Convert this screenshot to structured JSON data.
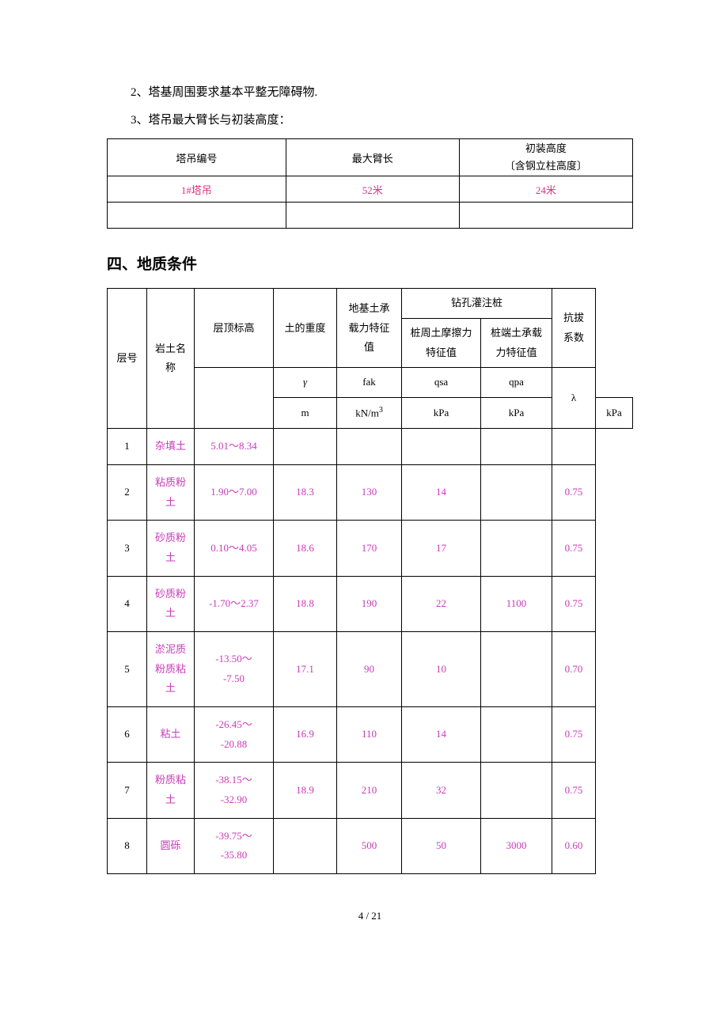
{
  "text": {
    "line2": "2、塔基周围要求基本平整无障碍物.",
    "line3": "3、塔吊最大臂长与初装高度："
  },
  "table1": {
    "headers": {
      "col1": "塔吊编号",
      "col2": "最大臂长",
      "col3_l1": "初装高度",
      "col3_l2": "〔含钢立柱高度〕"
    },
    "row1": {
      "c1": "1#塔吊",
      "c2": "52米",
      "c3": "24米"
    }
  },
  "sectionTitle": "四、地质条件",
  "geo": {
    "headers": {
      "layer": "层号",
      "soilName_l1": "岩土名",
      "soilName_l2": "称",
      "topElev": "层顶标高",
      "weight": "土的重度",
      "bearing_l1": "地基土承",
      "bearing_l2": "载力特征",
      "bearing_l3": "值",
      "pile": "钻孔灌注桩",
      "friction_l1": "桩周土摩擦力",
      "friction_l2": "特征值",
      "tip_l1": "桩端土承载",
      "tip_l2": "力特征值",
      "pullout_l1": "抗拔",
      "pullout_l2": "系数"
    },
    "symbols": {
      "weight": "γ",
      "bearing": "fak",
      "friction": "qsa",
      "tip": "qpa",
      "pullout": "λ"
    },
    "units": {
      "elev": "m",
      "weight": "kN/m",
      "weight_sup": "3",
      "bearing": "kPa",
      "friction": "kPa",
      "tip": "kPa"
    },
    "rows": [
      {
        "n": "1",
        "name": "杂填土",
        "elev": "5.01～8.34",
        "w": "",
        "fak": "",
        "qsa": "",
        "qpa": "",
        "lam": ""
      },
      {
        "n": "2",
        "name": "粘质粉土",
        "elev": "1.90～7.00",
        "w": "18.3",
        "fak": "130",
        "qsa": "14",
        "qpa": "",
        "lam": "0.75"
      },
      {
        "n": "3",
        "name": "砂质粉土",
        "elev": "0.10～4.05",
        "w": "18.6",
        "fak": "170",
        "qsa": "17",
        "qpa": "",
        "lam": "0.75"
      },
      {
        "n": "4",
        "name": "砂质粉土",
        "elev": "-1.70～2.37",
        "w": "18.8",
        "fak": "190",
        "qsa": "22",
        "qpa": "1100",
        "lam": "0.75"
      },
      {
        "n": "5",
        "name": "淤泥质粉质粘土",
        "elev": "-13.50～-7.50",
        "w": "17.1",
        "fak": "90",
        "qsa": "10",
        "qpa": "",
        "lam": "0.70"
      },
      {
        "n": "6",
        "name": "粘土",
        "elev": "-26.45～-20.88",
        "w": "16.9",
        "fak": "110",
        "qsa": "14",
        "qpa": "",
        "lam": "0.75"
      },
      {
        "n": "7",
        "name": "粉质粘土",
        "elev": "-38.15～-32.90",
        "w": "18.9",
        "fak": "210",
        "qsa": "32",
        "qpa": "",
        "lam": "0.75"
      },
      {
        "n": "8",
        "name": "圆砾",
        "elev": "-39.75～-35.80",
        "w": "",
        "fak": "500",
        "qsa": "50",
        "qpa": "3000",
        "lam": "0.60"
      }
    ]
  },
  "pageNum": "4 / 21",
  "style": {
    "magenta": "#c83cb9"
  }
}
